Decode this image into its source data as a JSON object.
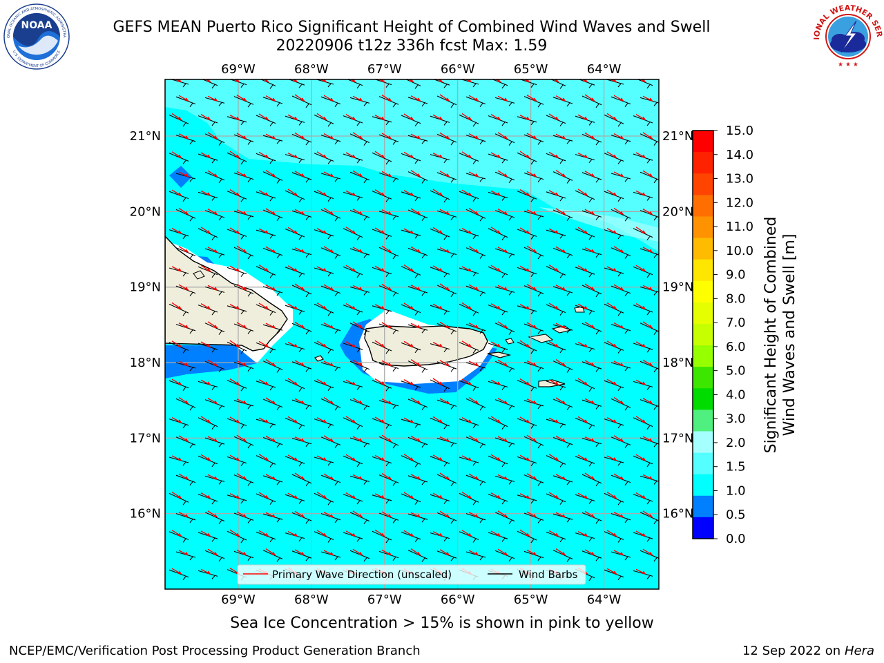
{
  "title": {
    "line1": "GEFS MEAN Puerto Rico Significant Height of Combined Wind Waves and Swell",
    "line2": "20220906 t12z 336h fcst   Max: 1.59"
  },
  "logos": {
    "noaa_text": "NOAA",
    "noaa_ring_top": "NATIONAL OCEANIC AND ATMOSPHERIC ADMINISTRATION",
    "noaa_ring_bottom": "U.S. DEPARTMENT OF COMMERCE",
    "nws_ring_top": "NATIONAL WEATHER SERVICE"
  },
  "map": {
    "lon_labels": [
      "69°W",
      "68°W",
      "67°W",
      "66°W",
      "65°W",
      "64°W"
    ],
    "lat_labels": [
      "21°N",
      "20°N",
      "19°N",
      "18°N",
      "17°N",
      "16°N"
    ],
    "lon_range": [
      -70.0,
      -63.25
    ],
    "lat_range": [
      15.0,
      21.75
    ],
    "gridlines": true,
    "field_colors": {
      "ocean": "#00FFFF",
      "light": "#55FFFF",
      "lighter": "#A6FFFF",
      "shallow": "#0080FF",
      "land": "#EFEEDC"
    }
  },
  "legend": {
    "wave_label": "Primary Wave Direction (unscaled)",
    "barb_label": "Wind Barbs",
    "placement": "lower-center"
  },
  "colorbar": {
    "label_line1": "Significant Height of Combined",
    "label_line2": "Wind Waves and Swell [m]",
    "ticks": [
      "15.0",
      "14.0",
      "13.0",
      "12.0",
      "11.0",
      "10.0",
      "9.0",
      "8.0",
      "7.0",
      "6.0",
      "5.0",
      "4.0",
      "3.0",
      "2.0",
      "1.5",
      "1.0",
      "0.5",
      "0.0"
    ],
    "colors_top_to_bottom": [
      "#FF0000",
      "#FF2200",
      "#FF4400",
      "#FF6E00",
      "#FF9200",
      "#FFBB00",
      "#FFE600",
      "#FFFF00",
      "#E6FF00",
      "#C8FF00",
      "#96FF00",
      "#3CE600",
      "#00DC00",
      "#50F080",
      "#A6FFFF",
      "#55FFFF",
      "#00FFFF",
      "#0080FF",
      "#0000FF"
    ]
  },
  "footer": {
    "note": "Sea Ice Concentration > 15% is shown in pink to yellow",
    "credit": "NCEP/EMC/Verification Post Processing Product Generation Branch",
    "date": "12 Sep 2022 on",
    "machine": "Hera"
  }
}
